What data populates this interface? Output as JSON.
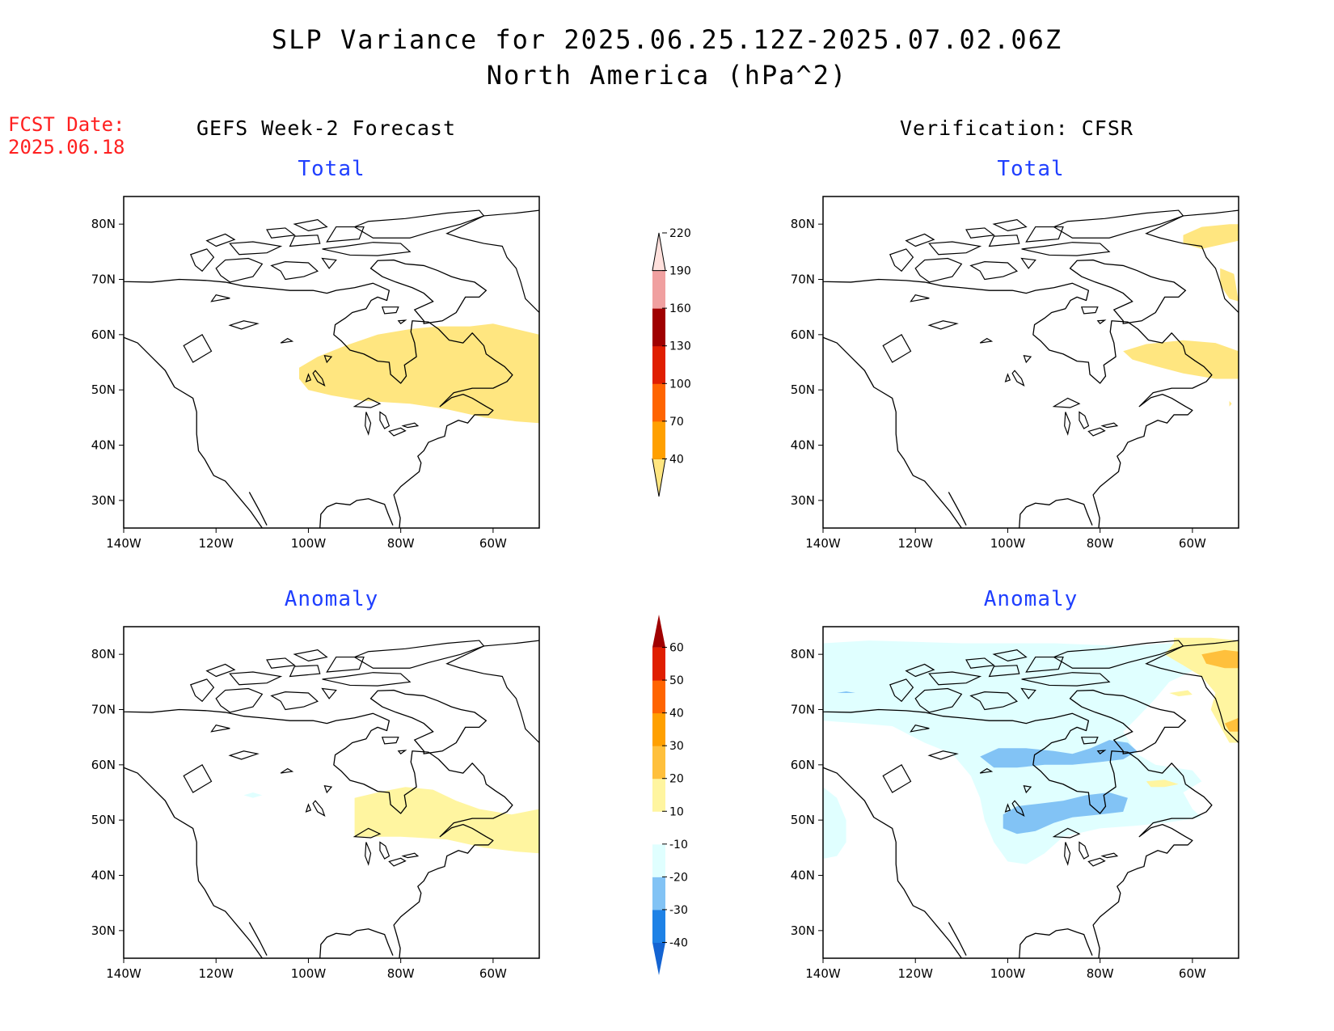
{
  "figure": {
    "title_line1": "SLP Variance for 2025.06.25.12Z-2025.07.02.06Z",
    "title_line2": "North America (hPa^2)",
    "fcst_label": "FCST Date:",
    "fcst_date": "2025.06.18",
    "left_section": "GEFS Week-2 Forecast",
    "right_section": "Verification: CFSR"
  },
  "panels": {
    "tl": {
      "title": "Total"
    },
    "tr": {
      "title": "Total"
    },
    "bl": {
      "title": "Anomaly"
    },
    "br": {
      "title": "Anomaly"
    }
  },
  "axes": {
    "lon_range": [
      -140,
      -50
    ],
    "lat_range": [
      25,
      85
    ],
    "lon_ticks": [
      -140,
      -120,
      -100,
      -80,
      -60
    ],
    "lon_tick_labels": [
      "140W",
      "120W",
      "100W",
      "80W",
      "60W"
    ],
    "lat_ticks": [
      30,
      40,
      50,
      60,
      70,
      80
    ],
    "lat_tick_labels": [
      "30N",
      "40N",
      "50N",
      "60N",
      "70N",
      "80N"
    ]
  },
  "colorbar_total": {
    "levels": [
      40,
      70,
      100,
      130,
      160,
      190,
      220
    ],
    "labels": [
      "40",
      "70",
      "100",
      "130",
      "160",
      "190",
      "220"
    ],
    "colors": [
      "#ffe680",
      "#ffa000",
      "#ff6400",
      "#e01e00",
      "#a00000",
      "#f0a0a0",
      "#ffe0dc"
    ]
  },
  "colorbar_anomaly": {
    "levels": [
      -40,
      -30,
      -20,
      -10,
      10,
      20,
      30,
      40,
      50,
      60
    ],
    "labels": [
      "-40",
      "-30",
      "-20",
      "-10",
      "10",
      "20",
      "30",
      "40",
      "50",
      "60"
    ],
    "colors": [
      "#1464d2",
      "#1e82e6",
      "#82c3f5",
      "#e0ffff",
      "#ffffff",
      "#fff5a0",
      "#ffc03c",
      "#ffa000",
      "#ff6400",
      "#e01e00",
      "#a00000"
    ]
  }
}
